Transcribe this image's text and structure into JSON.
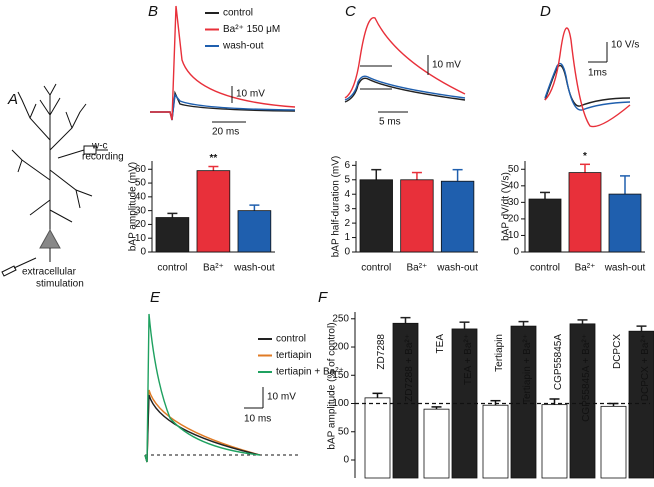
{
  "panel_a": {
    "letter": "A",
    "recording": [
      "w-c",
      "recording"
    ],
    "stimulation": [
      "extracellular",
      "stimulation"
    ]
  },
  "trace_panels": [
    {
      "letter": "B",
      "legend": [
        {
          "name": "control",
          "color": "#222222"
        },
        {
          "name": "Ba²⁺ 150 μM",
          "color": "#e8303a"
        },
        {
          "name": "wash-out",
          "color": "#1f5fae"
        }
      ],
      "scale_bars": [
        "10 mV",
        "20 ms"
      ]
    },
    {
      "letter": "C",
      "scale_bars": [
        "10 mV",
        "5 ms"
      ]
    },
    {
      "letter": "D",
      "scale_bars": [
        "10 V/s",
        "1ms"
      ]
    },
    {
      "letter": "E",
      "legend": [
        {
          "name": "control",
          "color": "#222222"
        },
        {
          "name": "tertiapin",
          "color": "#e07b25"
        },
        {
          "name": "tertiapin  + Ba²⁺",
          "color": "#1fa160"
        }
      ],
      "scale_bars": [
        "10 mV",
        "10 ms"
      ]
    }
  ],
  "panel_f": {
    "letter": "F"
  },
  "chart_data": [
    {
      "type": "bar",
      "ylabel": "bAP amplitude (mV)",
      "categories": [
        "control",
        "Ba²⁺",
        "wash-out"
      ],
      "values": [
        25,
        59,
        30
      ],
      "errors": [
        3,
        3,
        4
      ],
      "colors": [
        "#222222",
        "#e8303a",
        "#1f5fae"
      ],
      "ylim": [
        0,
        66
      ],
      "yticks": [
        0,
        10,
        20,
        30,
        40,
        50,
        60
      ],
      "annotation": "**"
    },
    {
      "type": "bar",
      "ylabel": "bAP half-duration (mV)",
      "categories": [
        "control",
        "Ba²⁺",
        "wash-out"
      ],
      "values": [
        5.0,
        5.0,
        4.9
      ],
      "errors": [
        0.7,
        0.5,
        0.8
      ],
      "colors": [
        "#222222",
        "#e8303a",
        "#1f5fae"
      ],
      "ylim": [
        0,
        6.3
      ],
      "yticks": [
        0,
        1,
        2,
        3,
        4,
        5,
        6
      ]
    },
    {
      "type": "bar",
      "ylabel": "bAP dV/dt (V/s)",
      "categories": [
        "control",
        "Ba²⁺",
        "wash-out"
      ],
      "values": [
        32,
        48,
        35
      ],
      "errors": [
        4,
        5,
        11
      ],
      "colors": [
        "#222222",
        "#e8303a",
        "#1f5fae"
      ],
      "ylim": [
        0,
        55
      ],
      "yticks": [
        0,
        10,
        20,
        30,
        40,
        50
      ],
      "annotation": "*"
    },
    {
      "type": "bar",
      "ylabel": "bAP amplitude (% of control)",
      "categories": [
        "ZD7288",
        "ZD7288 + Ba²⁺",
        "TEA",
        "TEA + Ba²⁺",
        "Tertiapin",
        "Tertiapin + Ba²⁺",
        "CGP55845A",
        "CGP55845A + Ba²⁺",
        "DCPCX",
        "DCPCX + Ba²⁺"
      ],
      "values": [
        110,
        242,
        90,
        232,
        97,
        237,
        98,
        241,
        95,
        228
      ],
      "errors": [
        8,
        10,
        4,
        12,
        8,
        8,
        10,
        7,
        5,
        9
      ],
      "colors": [
        "#ffffff",
        "#222222",
        "#ffffff",
        "#222222",
        "#ffffff",
        "#222222",
        "#ffffff",
        "#222222",
        "#ffffff",
        "#222222"
      ],
      "ylim": [
        0,
        262
      ],
      "yticks": [
        0,
        50,
        100,
        150,
        200,
        250
      ],
      "hline": 100
    }
  ]
}
